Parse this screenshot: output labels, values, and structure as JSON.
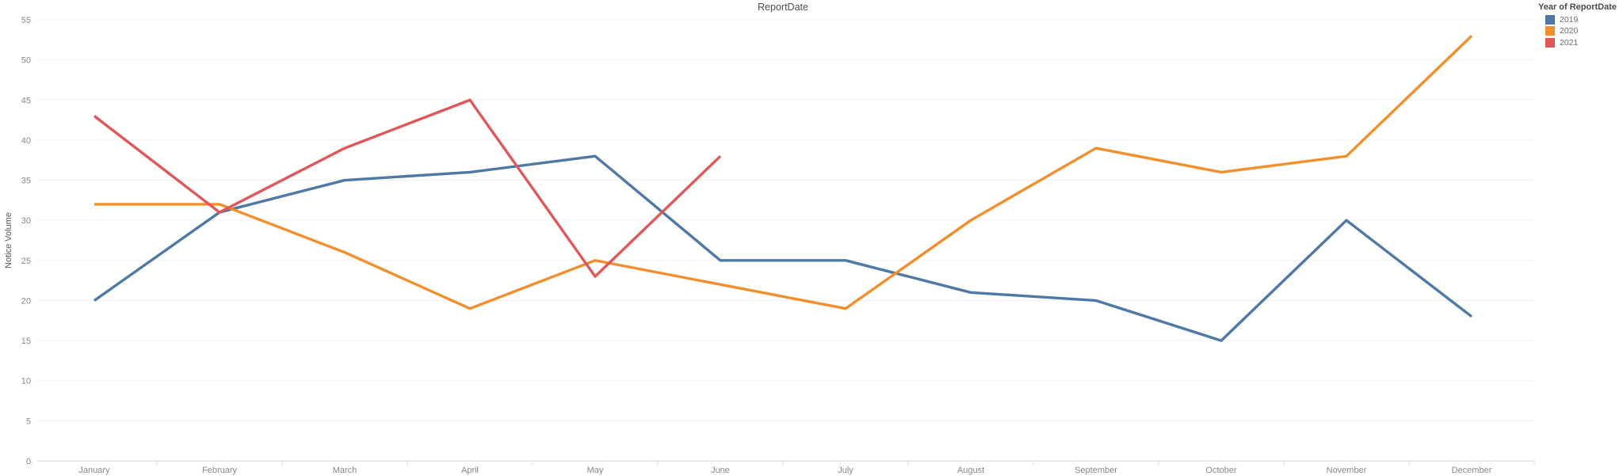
{
  "title": "ReportDate",
  "legend": {
    "title": "Year of ReportDate",
    "entries": [
      "2019",
      "2020",
      "2021"
    ]
  },
  "chart_data": {
    "type": "line",
    "title": "ReportDate",
    "xlabel": "",
    "ylabel": "Notice Volume",
    "x": [
      "January",
      "February",
      "March",
      "April",
      "May",
      "June",
      "July",
      "August",
      "September",
      "October",
      "November",
      "December"
    ],
    "yticks": [
      0,
      5,
      10,
      15,
      20,
      25,
      30,
      35,
      40,
      45,
      50,
      55
    ],
    "ylim": [
      0,
      55
    ],
    "grid": true,
    "legend_position": "top-right",
    "legend_title": "Year of ReportDate",
    "series": [
      {
        "name": "2019",
        "color": "#4e79a7",
        "values": [
          20,
          31,
          35,
          36,
          38,
          25,
          25,
          21,
          20,
          15,
          30,
          18
        ]
      },
      {
        "name": "2020",
        "color": "#f28e2b",
        "values": [
          32,
          32,
          26,
          19,
          25,
          22,
          19,
          30,
          39,
          36,
          38,
          53
        ]
      },
      {
        "name": "2021",
        "color": "#e15759",
        "values": [
          43,
          31,
          39,
          45,
          23,
          38,
          null,
          null,
          null,
          null,
          null,
          null
        ]
      }
    ]
  }
}
